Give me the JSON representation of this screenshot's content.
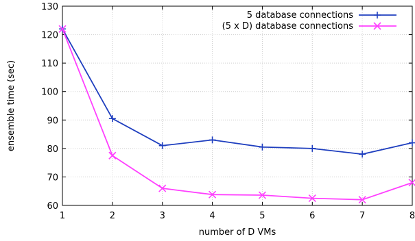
{
  "chart_data": {
    "type": "line",
    "xlabel": "number of D VMs",
    "ylabel": "ensemble time (sec)",
    "x": [
      1,
      2,
      3,
      4,
      5,
      6,
      7,
      8
    ],
    "xlim": [
      1,
      8
    ],
    "ylim": [
      60,
      130
    ],
    "xticks": [
      "1",
      "2",
      "3",
      "4",
      "5",
      "6",
      "7",
      "8"
    ],
    "yticks": [
      "60",
      "70",
      "80",
      "90",
      "100",
      "110",
      "120",
      "130"
    ],
    "grid": true,
    "legend_position": "top-right",
    "series": [
      {
        "name": "5 database connections",
        "color": "#1f3fbf",
        "marker": "plus",
        "values": [
          122,
          90.5,
          81,
          83,
          80.5,
          80,
          78,
          82
        ]
      },
      {
        "name": "(5 x D) database connections",
        "color": "#ff40ff",
        "marker": "cross",
        "values": [
          122,
          77.5,
          66,
          63.8,
          63.6,
          62.5,
          62,
          68
        ]
      }
    ]
  }
}
